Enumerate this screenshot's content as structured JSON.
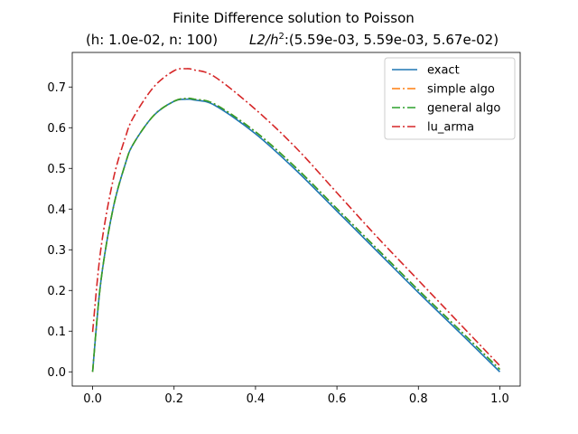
{
  "chart_data": {
    "type": "line",
    "title": "Finite Difference solution to Poisson",
    "subtitle_left": "(h: 1.0e-02, n: 100)",
    "subtitle_right_prefix": "L2/h",
    "subtitle_right_sup": "2",
    "subtitle_right_suffix": ":(5.59e-03, 5.59e-03,  5.67e-02)",
    "xlabel": "",
    "ylabel": "",
    "xlim": [
      -0.05,
      1.05
    ],
    "ylim": [
      -0.035,
      0.785
    ],
    "xticks": [
      0.0,
      0.2,
      0.4,
      0.6,
      0.8,
      1.0
    ],
    "xtick_labels": [
      "0.0",
      "0.2",
      "0.4",
      "0.6",
      "0.8",
      "1.0"
    ],
    "yticks": [
      0.0,
      0.1,
      0.2,
      0.3,
      0.4,
      0.5,
      0.6,
      0.7
    ],
    "ytick_labels": [
      "0.0",
      "0.1",
      "0.2",
      "0.3",
      "0.4",
      "0.5",
      "0.6",
      "0.7"
    ],
    "grid": false,
    "legend_position": "top-right",
    "x": [
      0.0,
      0.02,
      0.05,
      0.08,
      0.1,
      0.15,
      0.2,
      0.23,
      0.25,
      0.3,
      0.4,
      0.5,
      0.6,
      0.7,
      0.8,
      0.9,
      1.0
    ],
    "series": [
      {
        "name": "exact",
        "color": "#1f77b4",
        "style": "solid",
        "values": [
          0.0,
          0.22,
          0.4,
          0.51,
          0.56,
          0.63,
          0.665,
          0.67,
          0.668,
          0.655,
          0.585,
          0.495,
          0.395,
          0.295,
          0.195,
          0.098,
          0.0
        ]
      },
      {
        "name": "simple algo",
        "color": "#ff7f0e",
        "style": "dashdot",
        "values": [
          0.0,
          0.22,
          0.4,
          0.51,
          0.56,
          0.63,
          0.665,
          0.672,
          0.67,
          0.658,
          0.59,
          0.501,
          0.401,
          0.301,
          0.201,
          0.104,
          0.006
        ]
      },
      {
        "name": "general algo",
        "color": "#2ca02c",
        "style": "dashdot",
        "values": [
          0.0,
          0.22,
          0.4,
          0.51,
          0.56,
          0.63,
          0.665,
          0.672,
          0.67,
          0.658,
          0.59,
          0.501,
          0.401,
          0.301,
          0.201,
          0.104,
          0.006
        ]
      },
      {
        "name": "lu_arma",
        "color": "#d62728",
        "style": "dashdot",
        "values": [
          0.098,
          0.3,
          0.47,
          0.575,
          0.625,
          0.7,
          0.74,
          0.745,
          0.742,
          0.725,
          0.645,
          0.55,
          0.44,
          0.33,
          0.225,
          0.12,
          0.015
        ]
      }
    ]
  }
}
